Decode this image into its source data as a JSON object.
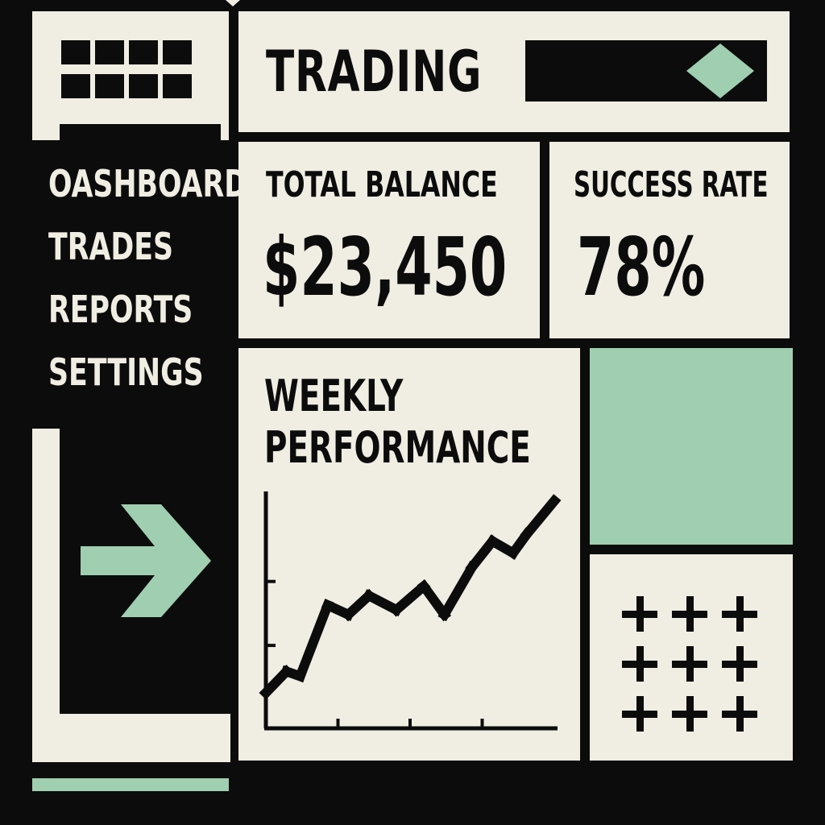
{
  "header": {
    "title": "TRADING"
  },
  "sidebar": {
    "items": [
      {
        "label": "OASHBOARD"
      },
      {
        "label": "TRADES"
      },
      {
        "label": "REPORTS"
      },
      {
        "label": "SETTINGS"
      }
    ]
  },
  "cards": {
    "balance": {
      "label": "TOTAL BALANCE",
      "value": "$23,450"
    },
    "success": {
      "label": "SUCCESS RATE",
      "value": "78%"
    }
  },
  "chart": {
    "title_line1": "WEEKLY",
    "title_line2": "PERFORMANCE"
  },
  "chart_data": {
    "type": "line",
    "title": "WEEKLY PERFORMANCE",
    "xlabel": "",
    "ylabel": "",
    "x": [
      0,
      0.3,
      0.5,
      0.9,
      1.2,
      1.5,
      1.9,
      2.3,
      2.6,
      3.0,
      3.3,
      3.6,
      3.8,
      4.2
    ],
    "values": [
      15,
      24,
      22,
      52,
      48,
      56,
      50,
      60,
      48,
      68,
      79,
      74,
      82,
      96
    ],
    "xlim": [
      0,
      4.2
    ],
    "ylim": [
      0,
      100
    ],
    "grid": false
  },
  "icons": {
    "logo": "grid-icon",
    "header_accent": "diamond-icon",
    "sidebar_action": "arrow-right-icon",
    "bottom_panel": "plus-icon"
  },
  "colors": {
    "background": "#0c0c0c",
    "panel": "#f0ede3",
    "accent": "#9fcfb0"
  }
}
